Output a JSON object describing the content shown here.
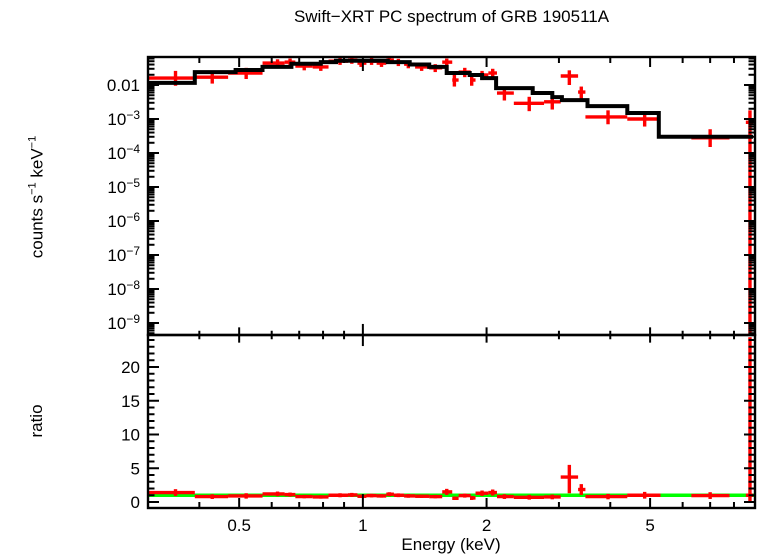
{
  "title": "Swift−XRT PC spectrum of GRB 190511A",
  "labels": {
    "y_top": {
      "base1": "counts s",
      "sup1": "−1",
      "base2": " keV",
      "sup2": "−1"
    },
    "y_bottom": "ratio",
    "x": "Energy (keV)"
  },
  "colors": {
    "data": "#ff0000",
    "model": "#000000",
    "reference": "#00ff00",
    "frame": "#000000",
    "background": "#ffffff"
  },
  "axes": {
    "x_axis": {
      "label": "Energy (keV)",
      "scale": "log",
      "min": 0.3,
      "max": 9.0,
      "major_ticks": [
        {
          "v": 0.5,
          "t": "0.5"
        },
        {
          "v": 1,
          "t": "1"
        },
        {
          "v": 2,
          "t": "2"
        },
        {
          "v": 5,
          "t": "5"
        }
      ],
      "minor_ticks": [
        0.4,
        0.6,
        0.7,
        0.8,
        0.9,
        3,
        4,
        6,
        7,
        8
      ]
    },
    "y_axis_top": {
      "scale": "log",
      "min": 4.6e-10,
      "max": 0.066,
      "ticks": [
        {
          "exp": -2,
          "base": "0.01",
          "sup": ""
        },
        {
          "exp": -3,
          "base": "10",
          "sup": "−3"
        },
        {
          "exp": -4,
          "base": "10",
          "sup": "−4"
        },
        {
          "exp": -5,
          "base": "10",
          "sup": "−5"
        },
        {
          "exp": -6,
          "base": "10",
          "sup": "−6"
        },
        {
          "exp": -7,
          "base": "10",
          "sup": "−7"
        },
        {
          "exp": -8,
          "base": "10",
          "sup": "−8"
        },
        {
          "exp": -9,
          "base": "10",
          "sup": "−9"
        }
      ]
    },
    "y_axis_bottom": {
      "scale": "linear",
      "min": -0.9,
      "max": 24.4,
      "ticks": [
        {
          "v": 0,
          "t": "0"
        },
        {
          "v": 5,
          "t": "5"
        },
        {
          "v": 10,
          "t": "10"
        },
        {
          "v": 15,
          "t": "15"
        },
        {
          "v": 20,
          "t": "20"
        }
      ],
      "minor_step": 1
    }
  },
  "chart_data": [
    {
      "type": "line",
      "name": "spectrum",
      "title": "Swift−XRT PC spectrum of GRB 190511A",
      "xlabel": "Energy (keV)",
      "ylabel": "counts s−1 keV−1",
      "xscale": "log",
      "yscale": "log",
      "xlim": [
        0.3,
        9.0
      ],
      "ylim": [
        4.6e-10,
        0.066
      ],
      "legend": "none",
      "grid": false,
      "model_steps": [
        [
          0.3,
          0.39,
          0.0115
        ],
        [
          0.39,
          0.49,
          0.024
        ],
        [
          0.49,
          0.57,
          0.0276
        ],
        [
          0.57,
          0.67,
          0.034
        ],
        [
          0.67,
          0.79,
          0.042
        ],
        [
          0.79,
          0.86,
          0.047
        ],
        [
          0.86,
          1.15,
          0.052
        ],
        [
          1.15,
          1.3,
          0.047
        ],
        [
          1.3,
          1.45,
          0.04
        ],
        [
          1.45,
          1.6,
          0.034
        ],
        [
          1.6,
          1.82,
          0.0225
        ],
        [
          1.82,
          1.95,
          0.0197
        ],
        [
          1.95,
          2.11,
          0.016
        ],
        [
          2.11,
          2.59,
          0.0081
        ],
        [
          2.59,
          2.89,
          0.0058
        ],
        [
          2.89,
          3.05,
          0.0044
        ],
        [
          3.05,
          3.52,
          0.0036
        ],
        [
          3.52,
          4.4,
          0.0024
        ],
        [
          4.4,
          5.25,
          0.0015
        ],
        [
          5.25,
          8.9,
          0.0003
        ]
      ],
      "points_format": [
        "E",
        "E_lo",
        "E_hi",
        "rate",
        "rate_lo",
        "rate_hi"
      ],
      "points": [
        [
          0.35,
          0.3,
          0.39,
          0.016,
          0.0095,
          0.026
        ],
        [
          0.43,
          0.39,
          0.47,
          0.017,
          0.011,
          0.026
        ],
        [
          0.52,
          0.47,
          0.57,
          0.0225,
          0.015,
          0.032
        ],
        [
          0.62,
          0.57,
          0.645,
          0.044,
          0.033,
          0.057
        ],
        [
          0.665,
          0.645,
          0.685,
          0.047,
          0.036,
          0.06
        ],
        [
          0.72,
          0.685,
          0.755,
          0.036,
          0.027,
          0.047
        ],
        [
          0.79,
          0.755,
          0.825,
          0.034,
          0.026,
          0.044
        ],
        [
          0.88,
          0.825,
          0.92,
          0.05,
          0.039,
          0.063
        ],
        [
          0.94,
          0.92,
          0.97,
          0.054,
          0.042,
          0.068
        ],
        [
          0.99,
          0.97,
          1.02,
          0.044,
          0.034,
          0.056
        ],
        [
          1.05,
          1.02,
          1.08,
          0.05,
          0.039,
          0.063
        ],
        [
          1.11,
          1.08,
          1.14,
          0.044,
          0.034,
          0.056
        ],
        [
          1.16,
          1.14,
          1.19,
          0.054,
          0.042,
          0.068
        ],
        [
          1.22,
          1.19,
          1.26,
          0.047,
          0.036,
          0.059
        ],
        [
          1.29,
          1.26,
          1.34,
          0.041,
          0.031,
          0.052
        ],
        [
          1.39,
          1.34,
          1.45,
          0.034,
          0.026,
          0.044
        ],
        [
          1.5,
          1.45,
          1.56,
          0.032,
          0.024,
          0.041
        ],
        [
          1.6,
          1.56,
          1.65,
          0.047,
          0.035,
          0.06
        ],
        [
          1.67,
          1.65,
          1.71,
          0.014,
          0.009,
          0.02
        ],
        [
          1.77,
          1.71,
          1.83,
          0.024,
          0.017,
          0.032
        ],
        [
          1.84,
          1.83,
          1.88,
          0.014,
          0.0095,
          0.0195
        ],
        [
          1.95,
          1.88,
          2.02,
          0.0197,
          0.014,
          0.026
        ],
        [
          2.07,
          2.02,
          2.12,
          0.0225,
          0.016,
          0.03
        ],
        [
          2.21,
          2.12,
          2.33,
          0.0058,
          0.0035,
          0.0085
        ],
        [
          2.54,
          2.33,
          2.76,
          0.0029,
          0.0017,
          0.0045
        ],
        [
          2.89,
          2.76,
          3.03,
          0.0032,
          0.0019,
          0.0048
        ],
        [
          3.18,
          3.03,
          3.34,
          0.0184,
          0.01,
          0.027
        ],
        [
          3.4,
          3.34,
          3.48,
          0.0062,
          0.0035,
          0.009
        ],
        [
          3.95,
          3.48,
          4.4,
          0.00115,
          0.0007,
          0.0018
        ],
        [
          4.85,
          4.4,
          5.3,
          0.001,
          0.0006,
          0.0016
        ],
        [
          7.0,
          6.3,
          7.8,
          0.00028,
          0.00015,
          0.0005
        ],
        [
          8.75,
          8.55,
          8.9,
          0.0008,
          1e-10,
          0.0018
        ]
      ]
    },
    {
      "type": "scatter",
      "name": "ratio",
      "ylabel": "ratio",
      "xscale": "log",
      "xlim": [
        0.3,
        9.0
      ],
      "ylim": [
        -0.9,
        24.4
      ],
      "reference_line": 1,
      "points_format": [
        "E",
        "E_lo",
        "E_hi",
        "ratio",
        "ratio_lo",
        "ratio_hi"
      ],
      "points": [
        [
          0.35,
          0.3,
          0.39,
          1.4,
          0.9,
          1.9
        ],
        [
          0.43,
          0.39,
          0.47,
          0.8,
          0.45,
          1.15
        ],
        [
          0.52,
          0.47,
          0.57,
          0.9,
          0.5,
          1.3
        ],
        [
          0.62,
          0.57,
          0.645,
          1.2,
          0.85,
          1.55
        ],
        [
          0.665,
          0.645,
          0.685,
          1.1,
          0.8,
          1.4
        ],
        [
          0.72,
          0.685,
          0.755,
          0.8,
          0.55,
          1.05
        ],
        [
          0.79,
          0.755,
          0.825,
          0.75,
          0.5,
          1.0
        ],
        [
          0.88,
          0.825,
          0.92,
          1.0,
          0.7,
          1.3
        ],
        [
          0.94,
          0.92,
          0.97,
          1.05,
          0.75,
          1.35
        ],
        [
          0.99,
          0.97,
          1.02,
          0.85,
          0.6,
          1.1
        ],
        [
          1.05,
          1.02,
          1.08,
          0.95,
          0.68,
          1.22
        ],
        [
          1.11,
          1.08,
          1.14,
          0.9,
          0.65,
          1.15
        ],
        [
          1.16,
          1.14,
          1.19,
          1.15,
          0.85,
          1.45
        ],
        [
          1.22,
          1.19,
          1.26,
          1.0,
          0.72,
          1.28
        ],
        [
          1.29,
          1.26,
          1.34,
          0.9,
          0.63,
          1.17
        ],
        [
          1.39,
          1.34,
          1.45,
          0.85,
          0.6,
          1.1
        ],
        [
          1.5,
          1.45,
          1.56,
          0.8,
          0.55,
          1.05
        ],
        [
          1.6,
          1.56,
          1.65,
          1.5,
          1.05,
          1.95
        ],
        [
          1.67,
          1.65,
          1.71,
          0.55,
          0.3,
          0.8
        ],
        [
          1.77,
          1.71,
          1.83,
          0.95,
          0.65,
          1.25
        ],
        [
          1.84,
          1.83,
          1.88,
          0.6,
          0.3,
          0.9
        ],
        [
          1.95,
          1.88,
          2.02,
          1.3,
          0.9,
          1.7
        ],
        [
          2.07,
          2.02,
          2.12,
          1.4,
          0.95,
          1.85
        ],
        [
          2.21,
          2.12,
          2.33,
          0.8,
          0.45,
          1.15
        ],
        [
          2.54,
          2.33,
          2.76,
          0.7,
          0.35,
          1.05
        ],
        [
          2.89,
          2.76,
          3.03,
          0.75,
          0.4,
          1.1
        ],
        [
          3.18,
          3.03,
          3.34,
          3.7,
          1.3,
          5.5
        ],
        [
          3.4,
          3.34,
          3.48,
          1.85,
          1.05,
          2.65
        ],
        [
          3.95,
          3.48,
          4.4,
          0.8,
          0.4,
          1.2
        ],
        [
          4.85,
          4.4,
          5.3,
          1.0,
          0.5,
          1.5
        ],
        [
          7.0,
          6.3,
          7.8,
          0.95,
          0.45,
          1.45
        ],
        [
          8.75,
          8.55,
          8.9,
          1.0,
          0.0,
          24.4
        ]
      ]
    }
  ]
}
